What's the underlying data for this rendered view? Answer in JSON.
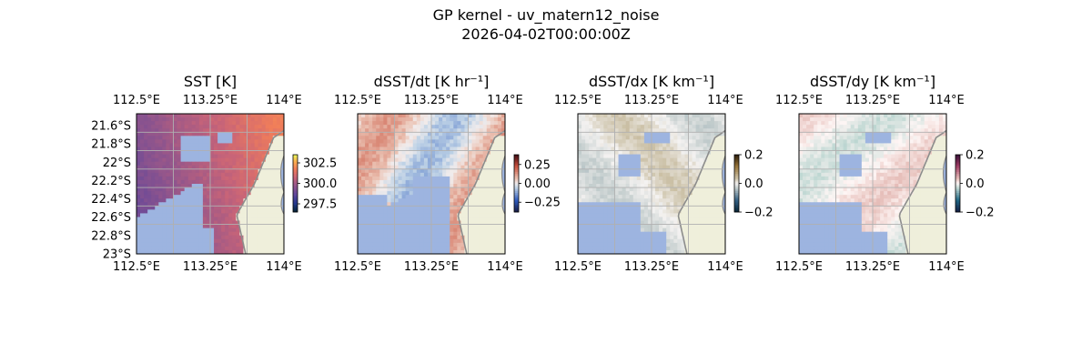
{
  "figure": {
    "title": "GP kernel - uv_matern12_noise",
    "subtitle": "2026-04-02T00:00:00Z"
  },
  "colors": {
    "land": "#efefdb",
    "coast": "#8c8c8c",
    "gap": "#9db4e0",
    "grid": "#b0b0b0"
  },
  "chart_data": [
    {
      "type": "heatmap",
      "title": "SST [K]",
      "top_ticks": [
        "112.5°E",
        "113.25°E",
        "114°E"
      ],
      "bottom_ticks": [
        "112.5°E",
        "113.25°E",
        "114°E"
      ],
      "left_ticks": [
        "21.6°S",
        "21.8°S",
        "22°S",
        "22.2°S",
        "22.4°S",
        "22.6°S",
        "22.8°S",
        "23°S"
      ],
      "colorbar_ticks": [
        "302.5",
        "300.0",
        "297.5"
      ],
      "colorbar_range": [
        296.5,
        303.5
      ]
    },
    {
      "type": "heatmap",
      "title": "dSST/dt [K hr⁻¹]",
      "top_ticks": [
        "112.5°E",
        "113.25°E",
        "114°E"
      ],
      "bottom_ticks": [
        "112.5°E",
        "113.25°E",
        "114°E"
      ],
      "left_ticks": [],
      "colorbar_ticks": [
        "0.25",
        "0.00",
        "−0.25"
      ],
      "colorbar_range": [
        -0.38,
        0.38
      ]
    },
    {
      "type": "heatmap",
      "title": "dSST/dx [K km⁻¹]",
      "top_ticks": [
        "112.5°E",
        "113.25°E",
        "114°E"
      ],
      "bottom_ticks": [
        "112.5°E",
        "113.25°E",
        "114°E"
      ],
      "left_ticks": [],
      "colorbar_ticks": [
        "0.2",
        "0.0",
        "−0.2"
      ],
      "colorbar_range": [
        -0.2,
        0.2
      ]
    },
    {
      "type": "heatmap",
      "title": "dSST/dy [K km⁻¹]",
      "top_ticks": [
        "112.5°E",
        "113.25°E",
        "114°E"
      ],
      "bottom_ticks": [
        "112.5°E",
        "113.25°E",
        "114°E"
      ],
      "left_ticks": [],
      "colorbar_ticks": [
        "0.2",
        "0.0",
        "−0.2"
      ],
      "colorbar_range": [
        -0.2,
        0.2
      ]
    }
  ]
}
